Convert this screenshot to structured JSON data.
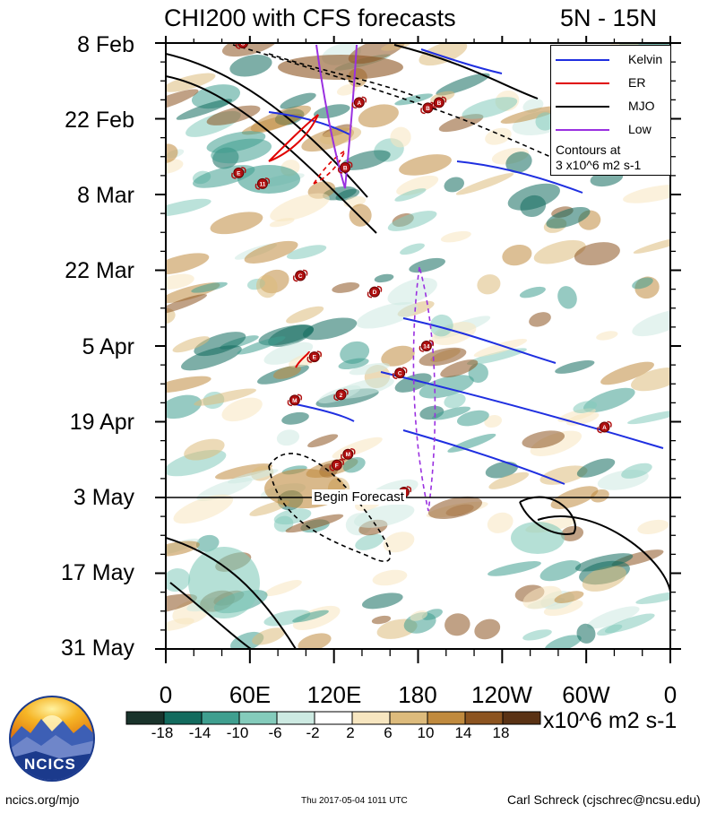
{
  "header": {
    "title": "CHI200 with CFS forecasts",
    "region": "5N - 15N"
  },
  "chart_data": {
    "type": "heatmap",
    "title": "CHI200 with CFS forecasts",
    "region_label": "5N - 15N",
    "y_axis": {
      "tick_labels": [
        "8 Feb",
        "22 Feb",
        "8 Mar",
        "22 Mar",
        "5 Apr",
        "19 Apr",
        "3 May",
        "17 May",
        "31 May"
      ],
      "range": [
        "8 Feb",
        "31 May"
      ],
      "direction": "top-to-bottom"
    },
    "x_axis": {
      "tick_labels": [
        "0",
        "60E",
        "120E",
        "180",
        "120W",
        "60W",
        "0"
      ],
      "range_deg_east": [
        0,
        360
      ]
    },
    "colorbar": {
      "levels": [
        "-18",
        "-14",
        "-10",
        "-6",
        "-2",
        "2",
        "6",
        "10",
        "14",
        "18"
      ],
      "colors": [
        "#19332b",
        "#136b5e",
        "#3f9f8f",
        "#84cbbb",
        "#cdeae2",
        "#ffffff",
        "#f7e6c0",
        "#ddbb7c",
        "#c08a3e",
        "#8c5420",
        "#5a3214"
      ],
      "unit": "x10^6 m2 s-1"
    },
    "forecast_marker": {
      "label": "Begin Forecast",
      "date": "3 May"
    },
    "legend": {
      "placement": "top-right",
      "entries": [
        {
          "name": "Kelvin",
          "color": "#1f2fe0"
        },
        {
          "name": "ER",
          "color": "#e00000"
        },
        {
          "name": "MJO",
          "color": "#000000"
        },
        {
          "name": "Low",
          "color": "#9a30e0"
        }
      ],
      "note_lines": [
        "Contours at",
        "3 x10^6 m2 s-1"
      ]
    },
    "storm_markers": [
      {
        "lon": 55,
        "day": 0,
        "label": "C"
      },
      {
        "lon": 138,
        "day": 11,
        "label": "A"
      },
      {
        "lon": 187,
        "day": 12,
        "label": "B"
      },
      {
        "lon": 195,
        "day": 11,
        "label": "B"
      },
      {
        "lon": 128,
        "day": 23,
        "label": "B"
      },
      {
        "lon": 52,
        "day": 24,
        "label": "E"
      },
      {
        "lon": 69,
        "day": 26,
        "label": "11"
      },
      {
        "lon": 96,
        "day": 43,
        "label": "C"
      },
      {
        "lon": 149,
        "day": 46,
        "label": "D"
      },
      {
        "lon": 186,
        "day": 56,
        "label": "14"
      },
      {
        "lon": 106,
        "day": 58,
        "label": "E"
      },
      {
        "lon": 167,
        "day": 61,
        "label": "C"
      },
      {
        "lon": 125,
        "day": 65,
        "label": "2"
      },
      {
        "lon": 92,
        "day": 66,
        "label": "M"
      },
      {
        "lon": 313,
        "day": 71,
        "label": "A"
      },
      {
        "lon": 130,
        "day": 76,
        "label": "M"
      },
      {
        "lon": 122,
        "day": 78,
        "label": "F"
      },
      {
        "lon": 170,
        "day": 83,
        "label": "C"
      }
    ]
  },
  "logo": {
    "text": "NCICS"
  },
  "footer": {
    "left": "ncics.org/mjo",
    "center": "Thu 2017-05-04 1011 UTC",
    "right": "Carl Schreck (cjschrec@ncsu.edu)"
  }
}
